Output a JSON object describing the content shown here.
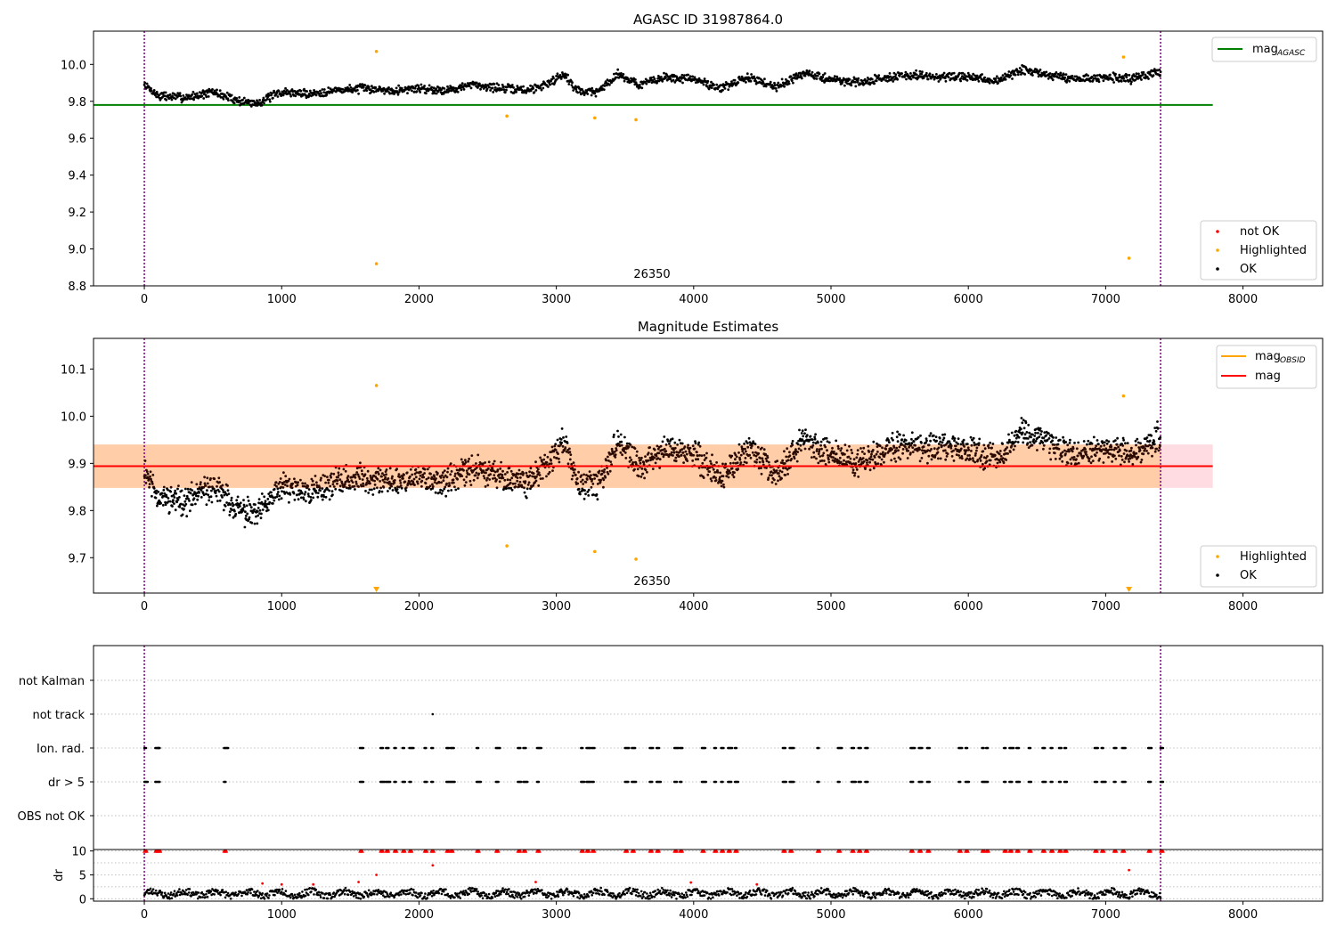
{
  "chart_data": [
    {
      "type": "scatter",
      "title": "AGASC ID 31987864.0",
      "xlim": [
        -370,
        8580
      ],
      "ylim": [
        8.8,
        10.18
      ],
      "xticks": [
        0,
        1000,
        2000,
        3000,
        4000,
        5000,
        6000,
        7000,
        8000
      ],
      "yticks": [
        8.8,
        9.0,
        9.2,
        9.4,
        9.6,
        9.8,
        10.0
      ],
      "vlines": [
        0,
        7400
      ],
      "hline": {
        "y": 9.78,
        "x": [
          -370,
          7780
        ],
        "color": "#008000"
      },
      "obsid_label": {
        "text": "26350",
        "x": 3700
      },
      "legend_top": [
        {
          "label": "mag",
          "sub": "AGASC",
          "color": "#008000"
        }
      ],
      "legend_bottom": [
        {
          "label": "not OK",
          "color": "#ff0000"
        },
        {
          "label": "Highlighted",
          "color": "#ffa500"
        },
        {
          "label": "OK",
          "color": "#000000"
        }
      ],
      "highlighted": [
        [
          1690,
          10.07
        ],
        [
          1690,
          8.92
        ],
        [
          2640,
          9.72
        ],
        [
          3280,
          9.71
        ],
        [
          3580,
          9.7
        ],
        [
          7130,
          10.04
        ],
        [
          7170,
          8.95
        ]
      ],
      "trend": [
        [
          0,
          9.89
        ],
        [
          100,
          9.83
        ],
        [
          300,
          9.82
        ],
        [
          500,
          9.85
        ],
        [
          700,
          9.8
        ],
        [
          820,
          9.79
        ],
        [
          1000,
          9.85
        ],
        [
          1200,
          9.84
        ],
        [
          1400,
          9.86
        ],
        [
          1600,
          9.87
        ],
        [
          1800,
          9.86
        ],
        [
          2000,
          9.87
        ],
        [
          2200,
          9.86
        ],
        [
          2400,
          9.89
        ],
        [
          2600,
          9.87
        ],
        [
          2800,
          9.86
        ],
        [
          2950,
          9.9
        ],
        [
          3050,
          9.95
        ],
        [
          3150,
          9.86
        ],
        [
          3300,
          9.85
        ],
        [
          3450,
          9.95
        ],
        [
          3600,
          9.89
        ],
        [
          3800,
          9.93
        ],
        [
          4000,
          9.92
        ],
        [
          4200,
          9.87
        ],
        [
          4400,
          9.93
        ],
        [
          4600,
          9.88
        ],
        [
          4800,
          9.95
        ],
        [
          5000,
          9.92
        ],
        [
          5200,
          9.9
        ],
        [
          5400,
          9.93
        ],
        [
          5600,
          9.94
        ],
        [
          5800,
          9.93
        ],
        [
          6000,
          9.93
        ],
        [
          6200,
          9.91
        ],
        [
          6400,
          9.97
        ],
        [
          6600,
          9.94
        ],
        [
          6800,
          9.92
        ],
        [
          7000,
          9.93
        ],
        [
          7200,
          9.92
        ],
        [
          7400,
          9.96
        ]
      ]
    },
    {
      "type": "scatter",
      "title": "Magnitude Estimates",
      "xlim": [
        -370,
        8580
      ],
      "ylim": [
        9.625,
        10.165
      ],
      "xticks": [
        0,
        1000,
        2000,
        3000,
        4000,
        5000,
        6000,
        7000,
        8000
      ],
      "yticks": [
        9.7,
        9.8,
        9.9,
        10.0,
        10.1
      ],
      "vlines": [
        0,
        7400
      ],
      "mag_line": {
        "y": 9.894,
        "x": [
          -370,
          7780
        ],
        "color": "#ff0000"
      },
      "band_pink": {
        "y": [
          9.848,
          9.94
        ],
        "x": [
          -370,
          7780
        ]
      },
      "band_orange": {
        "y": [
          9.848,
          9.94
        ],
        "x": [
          -370,
          7400
        ]
      },
      "obsid_label": {
        "text": "26350",
        "x": 3700
      },
      "legend_top": [
        {
          "label": "mag",
          "sub": "OBSID",
          "color": "#ffa500"
        },
        {
          "label": "mag",
          "sub": "",
          "color": "#ff0000"
        }
      ],
      "legend_bottom": [
        {
          "label": "Highlighted",
          "color": "#ffa500"
        },
        {
          "label": "OK",
          "color": "#000000"
        }
      ],
      "highlighted": [
        [
          1690,
          10.065
        ],
        [
          2640,
          9.725
        ],
        [
          3280,
          9.713
        ],
        [
          3580,
          9.697
        ],
        [
          7130,
          10.043
        ]
      ],
      "triangles": [
        [
          1690,
          9.63
        ],
        [
          7170,
          9.63
        ]
      ],
      "trend": [
        [
          0,
          9.89
        ],
        [
          100,
          9.83
        ],
        [
          300,
          9.82
        ],
        [
          500,
          9.85
        ],
        [
          700,
          9.8
        ],
        [
          820,
          9.79
        ],
        [
          1000,
          9.85
        ],
        [
          1200,
          9.84
        ],
        [
          1400,
          9.86
        ],
        [
          1600,
          9.87
        ],
        [
          1800,
          9.86
        ],
        [
          2000,
          9.87
        ],
        [
          2200,
          9.86
        ],
        [
          2400,
          9.89
        ],
        [
          2600,
          9.87
        ],
        [
          2800,
          9.86
        ],
        [
          2950,
          9.9
        ],
        [
          3050,
          9.95
        ],
        [
          3150,
          9.86
        ],
        [
          3300,
          9.85
        ],
        [
          3450,
          9.95
        ],
        [
          3600,
          9.89
        ],
        [
          3800,
          9.93
        ],
        [
          4000,
          9.92
        ],
        [
          4200,
          9.87
        ],
        [
          4400,
          9.93
        ],
        [
          4600,
          9.88
        ],
        [
          4800,
          9.95
        ],
        [
          5000,
          9.92
        ],
        [
          5200,
          9.9
        ],
        [
          5400,
          9.93
        ],
        [
          5600,
          9.94
        ],
        [
          5800,
          9.93
        ],
        [
          6000,
          9.93
        ],
        [
          6200,
          9.91
        ],
        [
          6400,
          9.97
        ],
        [
          6600,
          9.94
        ],
        [
          6800,
          9.92
        ],
        [
          7000,
          9.93
        ],
        [
          7200,
          9.92
        ],
        [
          7400,
          9.96
        ]
      ]
    },
    {
      "type": "scatter",
      "title": "",
      "xlim": [
        -370,
        8580
      ],
      "categories": [
        "not Kalman",
        "not track",
        "Ion. rad.",
        "dr > 5",
        "OBS not OK"
      ],
      "vlines": [
        0,
        7400
      ],
      "flags": {
        "not track": [
          2100
        ],
        "Ion. rad.": [
          0,
          80,
          100,
          580,
          1570,
          1720,
          1760,
          1820,
          1880,
          1930,
          2040,
          2090,
          2200,
          2230,
          2420,
          2560,
          2720,
          2760,
          2860,
          3180,
          3220,
          3260,
          3500,
          3550,
          3680,
          3730,
          3860,
          3900,
          4060,
          4150,
          4200,
          4250,
          4300,
          4650,
          4700,
          4900,
          5050,
          5150,
          5200,
          5250,
          5580,
          5640,
          5700,
          5930,
          5980,
          6100,
          6130,
          6260,
          6300,
          6350,
          6440,
          6540,
          6600,
          6660,
          6700,
          6920,
          6970,
          7060,
          7120,
          7310,
          7400
        ],
        "dr > 5": [
          0,
          80,
          100,
          580,
          1570,
          1720,
          1760,
          1820,
          1880,
          1930,
          2040,
          2090,
          2200,
          2230,
          2420,
          2560,
          2720,
          2760,
          2860,
          3180,
          3220,
          3260,
          3500,
          3550,
          3680,
          3730,
          3860,
          3900,
          4060,
          4150,
          4200,
          4250,
          4300,
          4650,
          4700,
          4900,
          5050,
          5150,
          5200,
          5250,
          5580,
          5640,
          5700,
          5930,
          5980,
          6100,
          6130,
          6260,
          6300,
          6350,
          6440,
          6540,
          6600,
          6660,
          6700,
          6920,
          6970,
          7060,
          7120,
          7310,
          7400
        ]
      }
    },
    {
      "type": "scatter",
      "title": "",
      "ylabel": "dr",
      "xlim": [
        -370,
        8580
      ],
      "ylim": [
        -0.5,
        10.3
      ],
      "xticks": [
        0,
        1000,
        2000,
        3000,
        4000,
        5000,
        6000,
        7000,
        8000
      ],
      "yticks": [
        0,
        5,
        10
      ],
      "vlines": [
        0,
        7400
      ],
      "outliers": [
        [
          2100,
          7
        ],
        [
          7170,
          6
        ],
        [
          1690,
          5
        ],
        [
          1560,
          3.5
        ],
        [
          2850,
          3.5
        ],
        [
          3980,
          3.4
        ],
        [
          4460,
          3.0
        ],
        [
          860,
          3.2
        ],
        [
          1000,
          3.0
        ],
        [
          1230,
          3.0
        ]
      ]
    }
  ]
}
